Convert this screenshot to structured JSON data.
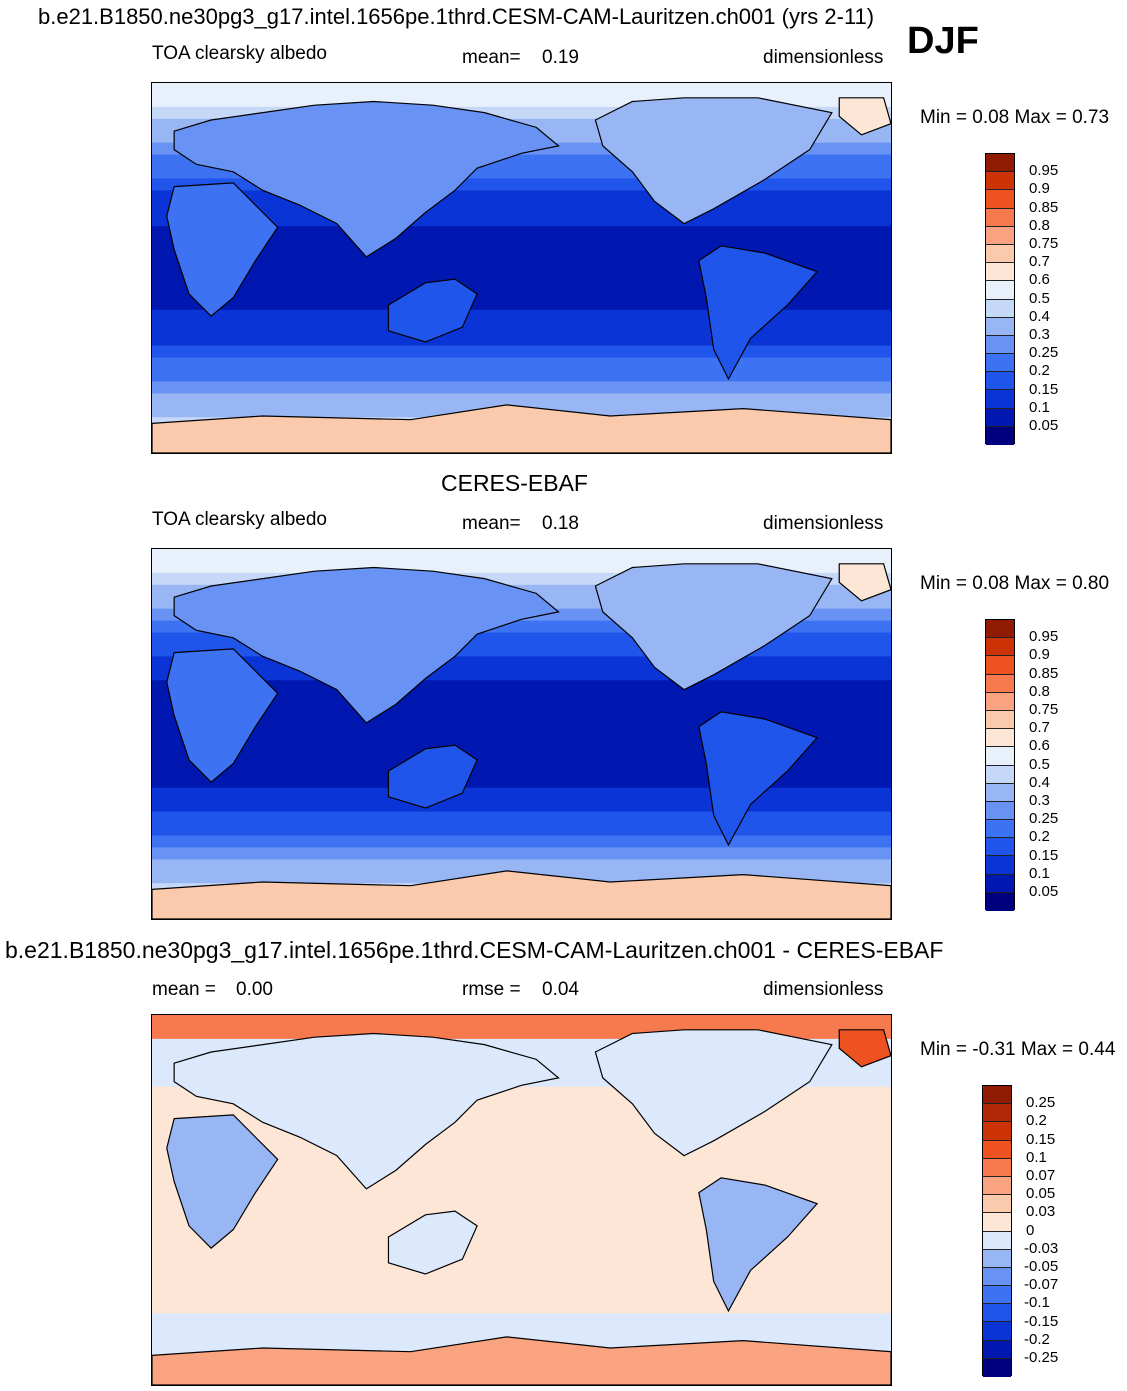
{
  "header": {
    "title": "b.e21.B1850.ne30pg3_g17.intel.1656pe.1thrd.CESM-CAM-Lauritzen.ch001 (yrs 2-11)",
    "season": "DJF"
  },
  "panels": [
    {
      "id": "model",
      "center_title": "",
      "left": "TOA clearsky albedo",
      "mid_label": "mean=",
      "mid_value": "0.19",
      "right": "dimensionless",
      "minmax": "Min =   0.08 Max =   0.73"
    },
    {
      "id": "obs",
      "center_title": "CERES-EBAF",
      "left": "TOA clearsky albedo",
      "mid_label": "mean=",
      "mid_value": "0.18",
      "right": "dimensionless",
      "minmax": "Min =   0.08 Max =   0.80"
    },
    {
      "id": "diff",
      "center_title": "b.e21.B1850.ne30pg3_g17.intel.1656pe.1thrd.CESM-CAM-Lauritzen.ch001 - CERES-EBAF",
      "left_label": "mean =",
      "left_value": "0.00",
      "mid_label": "rmse =",
      "mid_value": "0.04",
      "right": "dimensionless",
      "minmax": "Min =  -0.31 Max =   0.44"
    }
  ],
  "chart_data": [
    {
      "type": "heatmap",
      "panel": "model",
      "title": "b.e21.B1850.ne30pg3_g17.intel.1656pe.1thrd.CESM-CAM-Lauritzen.ch001 (yrs 2-11)",
      "subtitle": "DJF",
      "variable": "TOA clearsky albedo",
      "units": "dimensionless",
      "mean": 0.19,
      "min": 0.08,
      "max": 0.73,
      "colorbar_levels": [
        0.05,
        0.1,
        0.15,
        0.2,
        0.25,
        0.3,
        0.4,
        0.5,
        0.6,
        0.7,
        0.75,
        0.8,
        0.85,
        0.9,
        0.95
      ],
      "colors": [
        "#00007f",
        "#0017b0",
        "#0a34d6",
        "#1f55ea",
        "#3d72f2",
        "#6893f5",
        "#98b5f4",
        "#c6d8f7",
        "#e8f0fc",
        "#fde6d6",
        "#fbc9ac",
        "#f9a380",
        "#f77a4e",
        "#ef5221",
        "#cc3408",
        "#8f1b03"
      ],
      "grid": false,
      "map_projection": "global cylindrical equidistant, Pacific-centered"
    },
    {
      "type": "heatmap",
      "panel": "obs",
      "title": "CERES-EBAF",
      "variable": "TOA clearsky albedo",
      "units": "dimensionless",
      "mean": 0.18,
      "min": 0.08,
      "max": 0.8,
      "colorbar_levels": [
        0.05,
        0.1,
        0.15,
        0.2,
        0.25,
        0.3,
        0.4,
        0.5,
        0.6,
        0.7,
        0.75,
        0.8,
        0.85,
        0.9,
        0.95
      ],
      "colors": [
        "#00007f",
        "#0017b0",
        "#0a34d6",
        "#1f55ea",
        "#3d72f2",
        "#6893f5",
        "#98b5f4",
        "#c6d8f7",
        "#e8f0fc",
        "#fde6d6",
        "#fbc9ac",
        "#f9a380",
        "#f77a4e",
        "#ef5221",
        "#cc3408",
        "#8f1b03"
      ],
      "grid": false,
      "map_projection": "global cylindrical equidistant, Pacific-centered"
    },
    {
      "type": "heatmap",
      "panel": "diff",
      "title": "b.e21.B1850.ne30pg3_g17.intel.1656pe.1thrd.CESM-CAM-Lauritzen.ch001 - CERES-EBAF",
      "units": "dimensionless",
      "mean": 0.0,
      "rmse": 0.04,
      "min": -0.31,
      "max": 0.44,
      "colorbar_levels": [
        -0.25,
        -0.2,
        -0.15,
        -0.1,
        -0.07,
        -0.05,
        -0.03,
        0,
        0.03,
        0.05,
        0.07,
        0.1,
        0.15,
        0.2,
        0.25
      ],
      "colors": [
        "#00007f",
        "#0017b0",
        "#0a34d6",
        "#1f55ea",
        "#3d72f2",
        "#6893f5",
        "#98b5f4",
        "#dce8fb",
        "#fde6d6",
        "#fbc9ac",
        "#f9a380",
        "#f77a4e",
        "#ef5221",
        "#cc3408",
        "#b02806",
        "#8f1b03"
      ],
      "grid": false,
      "map_projection": "global cylindrical equidistant, Pacific-centered"
    }
  ]
}
